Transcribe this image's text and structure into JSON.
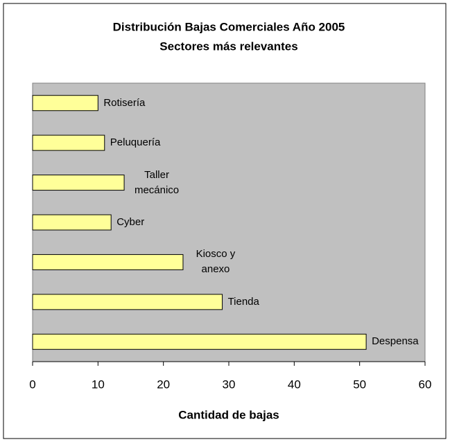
{
  "chart_data": {
    "type": "barh",
    "title": "Distribución Bajas Comerciales Año 2005",
    "subtitle": "Sectores más relevantes",
    "categories": [
      "Rotisería",
      "Peluquería",
      "Taller mecánico",
      "Cyber",
      "Kiosco y anexo",
      "Tienda",
      "Despensa"
    ],
    "values": [
      10,
      11,
      14,
      12,
      23,
      29,
      51
    ],
    "color": "#ffff99",
    "xlabel": "Cantidad de bajas",
    "xlim": [
      0,
      60
    ],
    "xticks": [
      0,
      10,
      20,
      30,
      40,
      50,
      60
    ],
    "background": "#c0c0c0"
  }
}
